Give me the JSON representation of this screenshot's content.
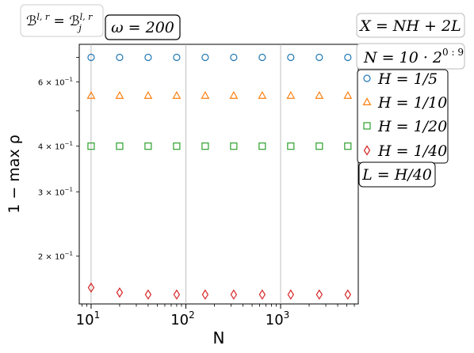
{
  "chart_data": {
    "type": "scatter",
    "xlabel": "N",
    "ylabel": "1 − max ρ",
    "xscale": "log",
    "yscale": "log",
    "xlim": [
      7.5,
      6600
    ],
    "ylim": [
      0.148,
      0.76
    ],
    "x": [
      10,
      20,
      40,
      80,
      160,
      320,
      640,
      1280,
      2560,
      5120
    ],
    "xticks": [
      {
        "value": 10,
        "base": "10",
        "exp": "1"
      },
      {
        "value": 100,
        "base": "10",
        "exp": "2"
      },
      {
        "value": 1000,
        "base": "10",
        "exp": "3"
      }
    ],
    "yticks": [
      {
        "value": 0.6,
        "mant": "6 × 10",
        "exp": "−1"
      },
      {
        "value": 0.4,
        "mant": "4 × 10",
        "exp": "−1"
      },
      {
        "value": 0.3,
        "mant": "3 × 10",
        "exp": "−1"
      },
      {
        "value": 0.2,
        "mant": "2 × 10",
        "exp": "−1"
      }
    ],
    "grid": "vertical at x-decades",
    "series": [
      {
        "name": "H = 1/5",
        "marker": "circle",
        "color": "#1f77b4",
        "values": [
          0.7,
          0.7,
          0.7,
          0.7,
          0.7,
          0.7,
          0.7,
          0.7,
          0.7,
          0.7
        ]
      },
      {
        "name": "H = 1/10",
        "marker": "triangle",
        "color": "#ff7f0e",
        "values": [
          0.55,
          0.55,
          0.55,
          0.55,
          0.55,
          0.55,
          0.55,
          0.55,
          0.55,
          0.55
        ]
      },
      {
        "name": "H = 1/20",
        "marker": "square",
        "color": "#2ca02c",
        "values": [
          0.4,
          0.4,
          0.4,
          0.4,
          0.4,
          0.4,
          0.4,
          0.4,
          0.4,
          0.4
        ]
      },
      {
        "name": "H = 1/40",
        "marker": "diamond",
        "color": "#d62728",
        "values": [
          0.164,
          0.159,
          0.157,
          0.157,
          0.157,
          0.157,
          0.157,
          0.157,
          0.157,
          0.157
        ]
      }
    ],
    "annotations": {
      "top_left": "𝓑^{l,r} = 𝓑_j^{l,r}",
      "omega": "ω = 200",
      "x_formula": "X = NH + 2L",
      "n_formula": "N = 10 · 2^{0:9}",
      "l_formula": "L = H/40"
    },
    "legend_placement": "right, outside plot"
  }
}
